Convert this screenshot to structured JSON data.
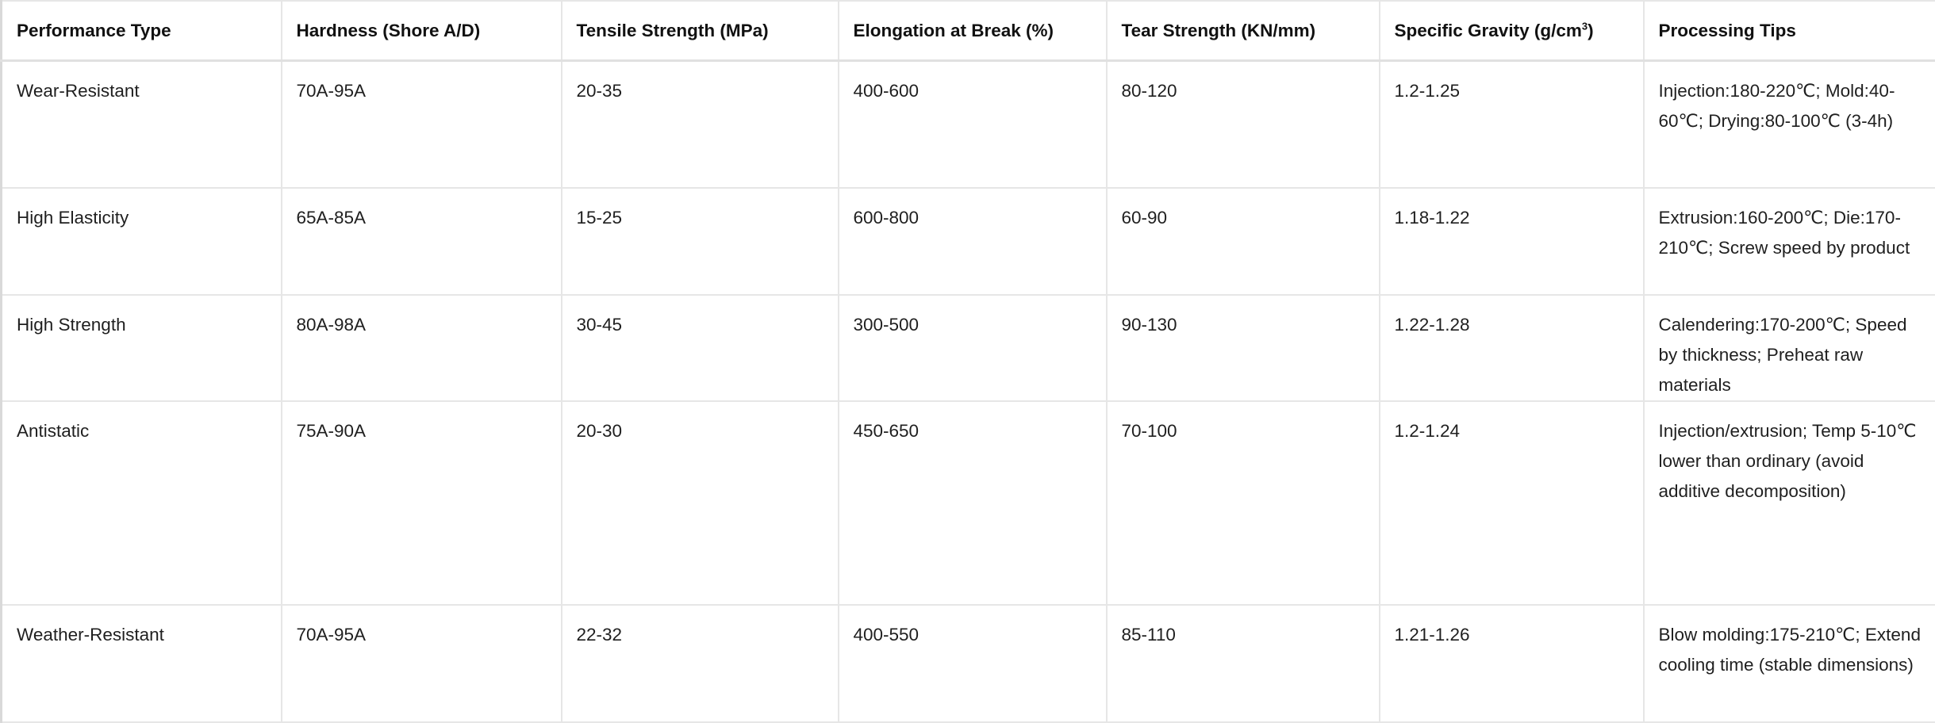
{
  "table": {
    "headers": [
      "Performance Type",
      "Hardness (Shore A/D)",
      "Tensile Strength (MPa)",
      "Elongation at Break (%)",
      "Tear Strength (KN/mm)",
      "Specific Gravity (g/cm",
      "Processing Tips"
    ],
    "specific_gravity_superscript": "3",
    "specific_gravity_suffix": ")",
    "rows": [
      [
        "Wear-Resistant",
        "70A-95A",
        "20-35",
        "400-600",
        "80-120",
        "1.2-1.25",
        "Injection:180-220℃; Mold:40-60℃; Drying:80-100℃ (3-4h)"
      ],
      [
        "High Elasticity",
        "65A-85A",
        "15-25",
        "600-800",
        "60-90",
        "1.18-1.22",
        "Extrusion:160-200℃; Die:170-210℃; Screw speed by product"
      ],
      [
        "High Strength",
        "80A-98A",
        "30-45",
        "300-500",
        "90-130",
        "1.22-1.28",
        "Calendering:170-200℃; Speed by thickness; Preheat raw materials"
      ],
      [
        "Antistatic",
        "75A-90A",
        "20-30",
        "450-650",
        "70-100",
        "1.2-1.24",
        "Injection/extrusion; Temp 5-10℃ lower than ordinary (avoid additive decomposition)"
      ],
      [
        "Weather-Resistant",
        "70A-95A",
        "22-32",
        "400-550",
        "85-110",
        "1.21-1.26",
        "Blow molding:175-210℃; Extend cooling time (stable dimensions)"
      ]
    ]
  }
}
